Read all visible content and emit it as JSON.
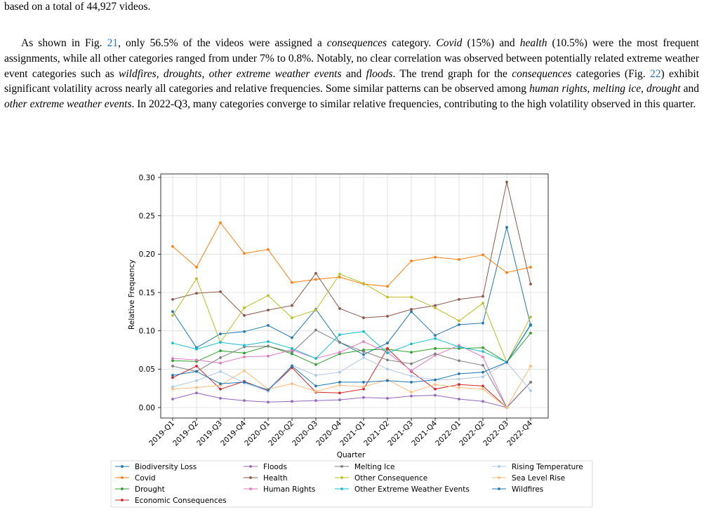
{
  "text": {
    "line0": "based on a total of 44,927 videos.",
    "p_1": "As shown in Fig. ",
    "fig21": "21",
    "p_2": ", only 56.5% of the videos were assigned a ",
    "it_consequences1": "consequences",
    "p_3": " category. ",
    "it_covid": "Covid",
    "p_4": " (15%) and ",
    "it_health": "health",
    "p_5": " (10.5%) were the most frequent assignments, while all other categories ranged from under 7% to 0.8%. Notably, no clear correlation was observed between potentially related extreme weather event categories such as ",
    "it_wildfires": "wildfires",
    "p_6": ", ",
    "it_droughts": "droughts",
    "p_7": ", ",
    "it_otherext": "other extreme weather events",
    "p_8": " and ",
    "it_floods": "floods",
    "p_9": ". The trend graph for the ",
    "it_consequences2": "consequences",
    "p_10": " categories (Fig. ",
    "fig22": "22",
    "p_11": ") exhibit significant volatility across nearly all categories and relative frequencies. Some similar patterns can be observed among ",
    "it_humanrights": "human rights",
    "p_12": ", ",
    "it_meltingice": "melting ice",
    "p_13": ", ",
    "it_drought": "drought",
    "p_14": " and ",
    "it_otherext2": "other extreme weather events",
    "p_15": ". In 2022-Q3, many categories converge to similar relative frequencies, contributing to the high volatility observed in this quarter."
  },
  "chart_data": {
    "type": "line",
    "xlabel": "Quarter",
    "ylabel": "Relative Frequency",
    "ylim": [
      0,
      0.3
    ],
    "yticks": [
      "0.00",
      "0.05",
      "0.10",
      "0.15",
      "0.20",
      "0.25",
      "0.30"
    ],
    "grid": true,
    "legend_position": "bottom",
    "x": [
      "2019-Q1",
      "2019-Q2",
      "2019-Q3",
      "2019-Q4",
      "2020-Q1",
      "2020-Q2",
      "2020-Q3",
      "2020-Q4",
      "2021-Q1",
      "2021-Q2",
      "2021-Q3",
      "2021-Q4",
      "2022-Q1",
      "2022-Q2",
      "2022-Q3",
      "2022-Q4"
    ],
    "series": [
      {
        "name": "Biodiversity Loss",
        "color": "#1f77b4",
        "values": [
          0.125,
          0.078,
          0.096,
          0.099,
          0.107,
          0.091,
          0.128,
          0.085,
          0.069,
          0.084,
          0.125,
          0.094,
          0.108,
          0.11,
          0.235,
          0.107
        ]
      },
      {
        "name": "Covid",
        "color": "#ff7f0e",
        "values": [
          0.21,
          0.183,
          0.241,
          0.201,
          0.206,
          0.163,
          0.167,
          0.17,
          0.161,
          0.158,
          0.191,
          0.196,
          0.193,
          0.199,
          0.176,
          0.183
        ]
      },
      {
        "name": "Drought",
        "color": "#2ca02c",
        "values": [
          0.061,
          0.06,
          0.074,
          0.071,
          0.08,
          0.07,
          0.056,
          0.07,
          0.075,
          0.076,
          0.072,
          0.077,
          0.077,
          0.078,
          0.059,
          0.097
        ]
      },
      {
        "name": "Economic Consequences",
        "color": "#d62728",
        "values": [
          0.039,
          0.054,
          0.024,
          0.034,
          0.022,
          0.052,
          0.02,
          0.019,
          0.024,
          0.077,
          0.047,
          0.024,
          0.03,
          0.028,
          0.0,
          0.033
        ]
      },
      {
        "name": "Floods",
        "color": "#9467bd",
        "values": [
          0.011,
          0.019,
          0.012,
          0.009,
          0.007,
          0.008,
          0.009,
          0.01,
          0.013,
          0.012,
          0.015,
          0.016,
          0.011,
          0.008,
          0.0,
          0.033
        ]
      },
      {
        "name": "Health",
        "color": "#8c564b",
        "values": [
          0.141,
          0.149,
          0.151,
          0.12,
          0.127,
          0.133,
          0.175,
          0.129,
          0.117,
          0.119,
          0.128,
          0.133,
          0.141,
          0.145,
          0.294,
          0.161
        ]
      },
      {
        "name": "Human Rights",
        "color": "#e377c2",
        "values": [
          0.064,
          0.062,
          0.058,
          0.066,
          0.067,
          0.075,
          0.064,
          0.072,
          0.086,
          0.072,
          0.048,
          0.068,
          0.081,
          0.066,
          0.0,
          0.033
        ]
      },
      {
        "name": "Melting Ice",
        "color": "#7f7f7f",
        "values": [
          0.054,
          0.047,
          0.065,
          0.079,
          0.08,
          0.072,
          0.101,
          0.085,
          0.073,
          0.062,
          0.057,
          0.07,
          0.061,
          0.055,
          0.0,
          0.033
        ]
      },
      {
        "name": "Other Consequence",
        "color": "#bcbd22",
        "values": [
          0.12,
          0.168,
          0.085,
          0.13,
          0.146,
          0.117,
          0.127,
          0.174,
          0.162,
          0.144,
          0.144,
          0.13,
          0.113,
          0.136,
          0.059,
          0.118
        ]
      },
      {
        "name": "Other Extreme Weather Events",
        "color": "#17becf",
        "values": [
          0.084,
          0.076,
          0.085,
          0.081,
          0.086,
          0.077,
          0.064,
          0.095,
          0.099,
          0.071,
          0.083,
          0.09,
          0.079,
          0.073,
          0.059,
          0.107
        ]
      },
      {
        "name": "Rising Temperature",
        "color": "#aec7e8",
        "values": [
          0.027,
          0.035,
          0.047,
          0.032,
          0.021,
          0.055,
          0.042,
          0.046,
          0.065,
          0.05,
          0.041,
          0.036,
          0.037,
          0.04,
          0.059,
          0.022
        ]
      },
      {
        "name": "Sea Level Rise",
        "color": "#ffbb78",
        "values": [
          0.024,
          0.026,
          0.029,
          0.048,
          0.024,
          0.031,
          0.021,
          0.029,
          0.027,
          0.036,
          0.02,
          0.03,
          0.026,
          0.024,
          0.0,
          0.054
        ]
      },
      {
        "name": "Wildfires",
        "color": "#1f77b4",
        "values": [
          0.042,
          0.047,
          0.031,
          0.033,
          0.023,
          0.054,
          0.028,
          0.033,
          0.033,
          0.035,
          0.033,
          0.036,
          0.044,
          0.046,
          0.059,
          0.108
        ]
      }
    ]
  }
}
